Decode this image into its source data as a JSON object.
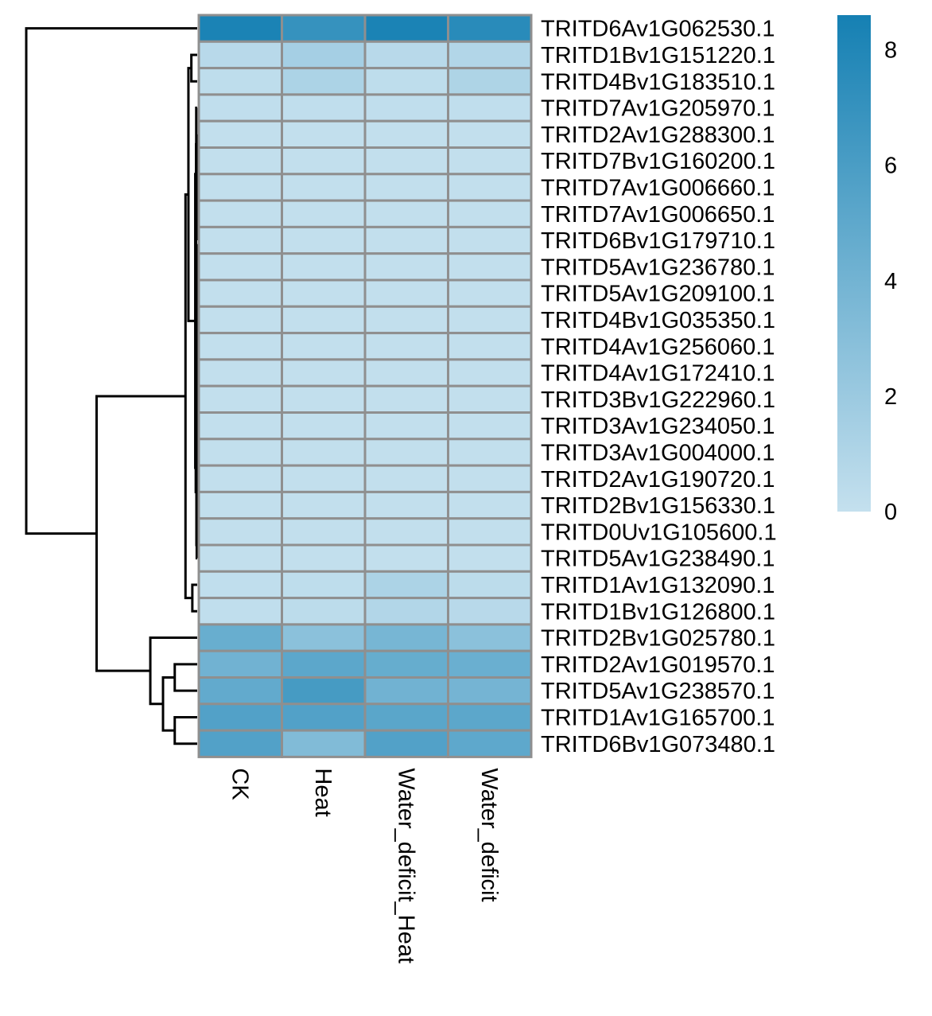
{
  "chart_data": {
    "type": "heatmap",
    "rows": [
      "TRITD6Av1G062530.1",
      "TRITD1Bv1G151220.1",
      "TRITD4Bv1G183510.1",
      "TRITD7Av1G205970.1",
      "TRITD2Av1G288300.1",
      "TRITD7Bv1G160200.1",
      "TRITD7Av1G006660.1",
      "TRITD7Av1G006650.1",
      "TRITD6Bv1G179710.1",
      "TRITD5Av1G236780.1",
      "TRITD5Av1G209100.1",
      "TRITD4Bv1G035350.1",
      "TRITD4Av1G256060.1",
      "TRITD4Av1G172410.1",
      "TRITD3Bv1G222960.1",
      "TRITD3Av1G234050.1",
      "TRITD3Av1G004000.1",
      "TRITD2Av1G190720.1",
      "TRITD2Bv1G156330.1",
      "TRITD0Uv1G105600.1",
      "TRITD5Av1G238490.1",
      "TRITD1Av1G132090.1",
      "TRITD1Bv1G126800.1",
      "TRITD2Bv1G025780.1",
      "TRITD2Av1G019570.1",
      "TRITD5Av1G238570.1",
      "TRITD1Av1G165700.1",
      "TRITD6Bv1G073480.1"
    ],
    "columns": [
      "CK",
      "Heat",
      "Water_deficit_Heat",
      "Water_deficit"
    ],
    "values": [
      [
        8.3,
        7.0,
        8.3,
        7.6
      ],
      [
        0.6,
        1.5,
        0.6,
        0.9
      ],
      [
        0.3,
        1.2,
        0.3,
        1.1
      ],
      [
        0.2,
        0.2,
        0.2,
        0.2
      ],
      [
        0.1,
        0.1,
        0.1,
        0.1
      ],
      [
        0.1,
        0.1,
        0.1,
        0.1
      ],
      [
        0.1,
        0.1,
        0.1,
        0.1
      ],
      [
        0.1,
        0.1,
        0.1,
        0.1
      ],
      [
        0.1,
        0.1,
        0.1,
        0.1
      ],
      [
        0.1,
        0.1,
        0.1,
        0.1
      ],
      [
        0.1,
        0.1,
        0.1,
        0.1
      ],
      [
        0.1,
        0.1,
        0.1,
        0.1
      ],
      [
        0.1,
        0.1,
        0.1,
        0.1
      ],
      [
        0.1,
        0.1,
        0.1,
        0.1
      ],
      [
        0.1,
        0.1,
        0.1,
        0.1
      ],
      [
        0.1,
        0.1,
        0.1,
        0.1
      ],
      [
        0.1,
        0.1,
        0.1,
        0.1
      ],
      [
        0.1,
        0.1,
        0.1,
        0.1
      ],
      [
        0.1,
        0.1,
        0.1,
        0.1
      ],
      [
        0.1,
        0.1,
        0.1,
        0.1
      ],
      [
        0.1,
        0.1,
        0.1,
        0.1
      ],
      [
        0.2,
        0.3,
        1.2,
        0.4
      ],
      [
        0.2,
        0.4,
        0.9,
        0.6
      ],
      [
        4.5,
        2.8,
        3.8,
        2.8
      ],
      [
        4.1,
        5.1,
        4.6,
        4.4
      ],
      [
        4.8,
        6.2,
        4.1,
        3.9
      ],
      [
        5.6,
        5.6,
        5.2,
        5.1
      ],
      [
        5.6,
        3.3,
        5.6,
        5.0
      ]
    ],
    "scale": {
      "min": 0,
      "max": 8.6,
      "low_color": "#c4e0ee",
      "high_color": "#1580b3",
      "ticks": [
        0,
        2,
        4,
        6,
        8
      ]
    },
    "row_dendrogram": {
      "merges": [
        [
          1,
          2,
          0.6
        ],
        [
          21,
          22,
          0.5
        ],
        [
          15,
          16,
          0.05
        ],
        [
          5,
          6,
          0.06
        ],
        [
          7,
          8,
          0.05
        ],
        [
          4,
          -5,
          0.08
        ],
        [
          3,
          -6,
          0.1
        ],
        [
          9,
          10,
          0.04
        ],
        [
          11,
          12,
          0.04
        ],
        [
          -8,
          -9,
          0.06
        ],
        [
          13,
          14,
          0.05
        ],
        [
          -10,
          -11,
          0.07
        ],
        [
          -7,
          -12,
          0.12
        ],
        [
          17,
          18,
          0.05
        ],
        [
          -3,
          -13,
          0.07
        ],
        [
          19,
          20,
          0.05
        ],
        [
          -15,
          -16,
          0.08
        ],
        [
          -14,
          -17,
          0.15
        ],
        [
          -4,
          -18,
          0.2
        ],
        [
          -1,
          -19,
          0.9
        ],
        [
          -2,
          -20,
          1.2
        ],
        [
          24,
          25,
          2.3
        ],
        [
          26,
          27,
          2.3
        ],
        [
          -22,
          -23,
          3.5
        ],
        [
          23,
          -24,
          4.8
        ],
        [
          -21,
          -25,
          10.3
        ],
        [
          0,
          -26,
          17.5
        ]
      ],
      "max_height": 17.5
    }
  }
}
